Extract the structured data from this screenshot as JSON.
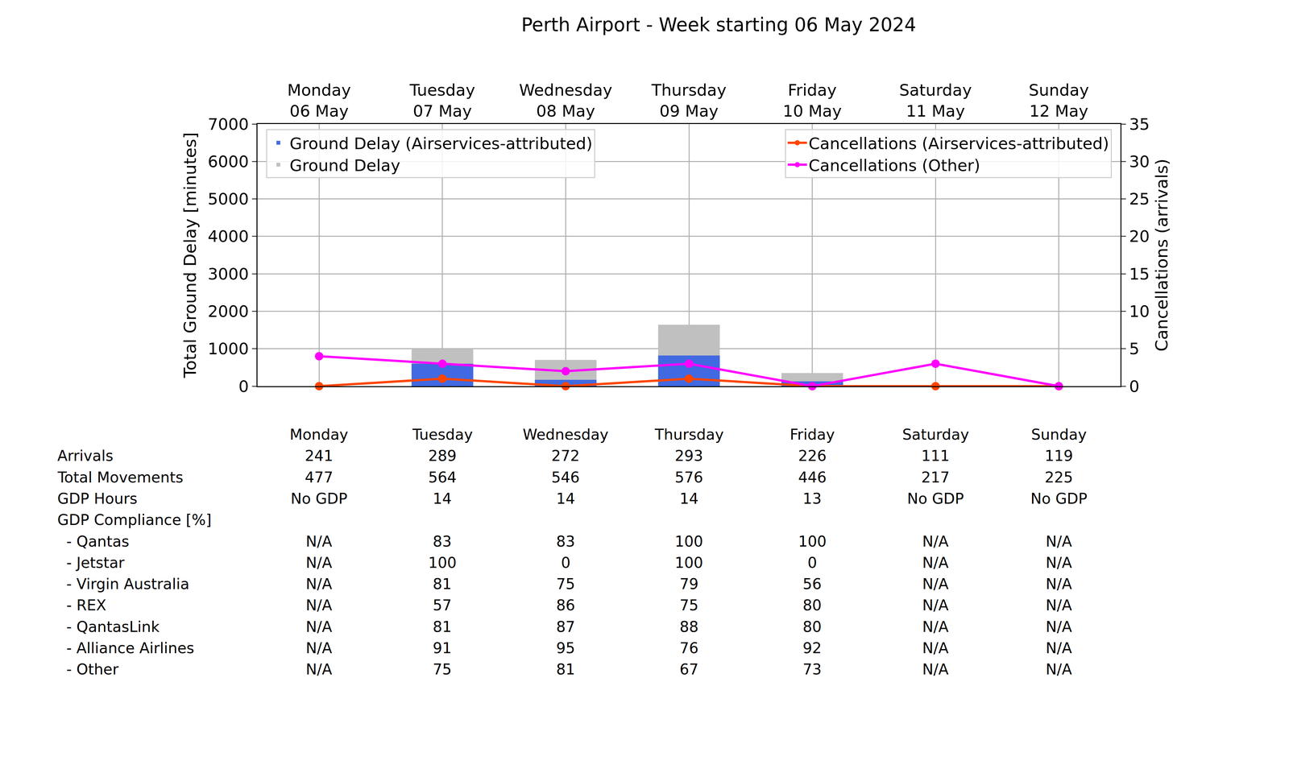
{
  "chart_data": {
    "type": "bar",
    "title": "Perth Airport - Week starting 06 May 2024",
    "categories": [
      "Monday\n06 May",
      "Tuesday\n07 May",
      "Wednesday\n08 May",
      "Thursday\n09 May",
      "Friday\n10 May",
      "Saturday\n11 May",
      "Sunday\n12 May"
    ],
    "y_label": "Total Ground Delay [minutes]",
    "y2_label": "Cancellations (arrivals)",
    "ylim": [
      0,
      7000
    ],
    "yticks": [
      0,
      1000,
      2000,
      3000,
      4000,
      5000,
      6000,
      7000
    ],
    "y2lim": [
      0,
      35
    ],
    "y2ticks": [
      0,
      5,
      10,
      15,
      20,
      25,
      30,
      35
    ],
    "grid": true,
    "stacked": false,
    "series": [
      {
        "name": "Ground Delay (Airservices-attributed)",
        "type": "bar",
        "color": "#4169e1",
        "legend": "upper left",
        "values": [
          0,
          600,
          170,
          820,
          130,
          0,
          0
        ]
      },
      {
        "name": "Ground Delay",
        "type": "bar",
        "color": "#c0c0c0",
        "legend": "upper left",
        "values": [
          0,
          1000,
          700,
          1640,
          350,
          0,
          0
        ]
      },
      {
        "name": "Cancellations (Airservices-attributed)",
        "type": "line",
        "color": "#ff4500",
        "marker": "circle",
        "axis": "y2",
        "legend": "upper right",
        "values": [
          0,
          1,
          0,
          1,
          0,
          0,
          0
        ]
      },
      {
        "name": "Cancellations (Other)",
        "type": "line",
        "color": "#ff00ff",
        "marker": "circle",
        "axis": "y2",
        "legend": "upper right",
        "values": [
          4,
          3,
          2,
          3,
          0,
          3,
          0
        ]
      }
    ],
    "table": {
      "columns": [
        "Monday",
        "Tuesday",
        "Wednesday",
        "Thursday",
        "Friday",
        "Saturday",
        "Sunday"
      ],
      "rows": [
        {
          "label": "Arrivals",
          "values": [
            241,
            289,
            272,
            293,
            226,
            111,
            119
          ]
        },
        {
          "label": "Total Movements",
          "values": [
            477,
            564,
            546,
            576,
            446,
            217,
            225
          ]
        },
        {
          "label": "GDP Hours",
          "values": [
            "No GDP",
            14,
            14,
            14,
            13,
            "No GDP",
            "No GDP"
          ]
        }
      ],
      "group": {
        "label": "GDP Compliance [%]",
        "rows": [
          {
            "label": "- Qantas",
            "values": [
              "N/A",
              83,
              83,
              100,
              100,
              "N/A",
              "N/A"
            ]
          },
          {
            "label": "- Jetstar",
            "values": [
              "N/A",
              100,
              0,
              100,
              0,
              "N/A",
              "N/A"
            ]
          },
          {
            "label": "- Virgin Australia",
            "values": [
              "N/A",
              81,
              75,
              79,
              56,
              "N/A",
              "N/A"
            ]
          },
          {
            "label": "- REX",
            "values": [
              "N/A",
              57,
              86,
              75,
              80,
              "N/A",
              "N/A"
            ]
          },
          {
            "label": "- QantasLink",
            "values": [
              "N/A",
              81,
              87,
              88,
              80,
              "N/A",
              "N/A"
            ]
          },
          {
            "label": "- Alliance Airlines",
            "values": [
              "N/A",
              91,
              95,
              76,
              92,
              "N/A",
              "N/A"
            ]
          },
          {
            "label": "- Other",
            "values": [
              "N/A",
              75,
              81,
              67,
              73,
              "N/A",
              "N/A"
            ]
          }
        ]
      }
    }
  }
}
